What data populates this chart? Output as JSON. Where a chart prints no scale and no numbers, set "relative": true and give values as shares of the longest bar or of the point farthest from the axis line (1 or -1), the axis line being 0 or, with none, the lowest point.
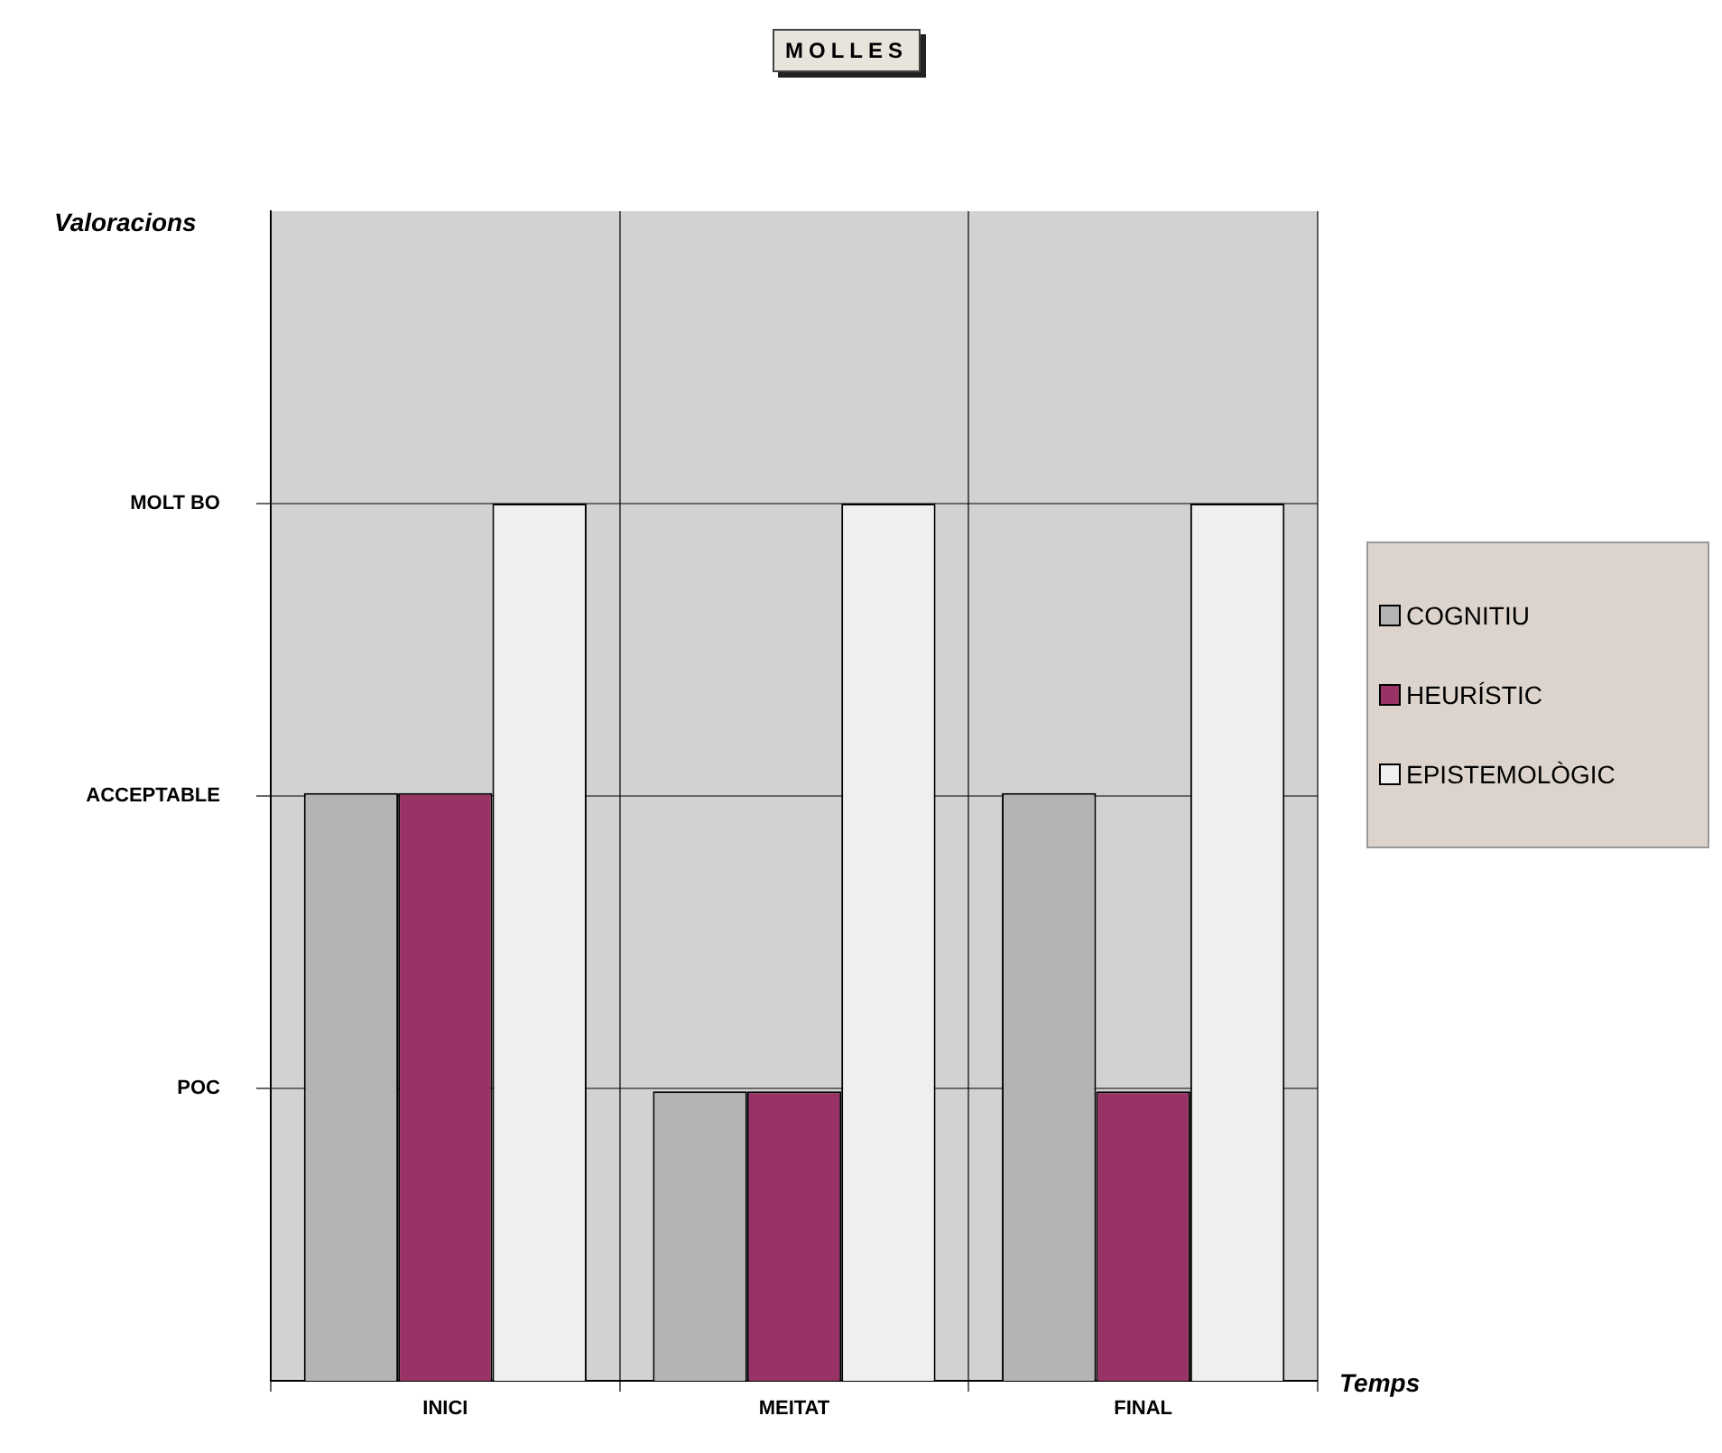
{
  "chart_data": {
    "type": "bar",
    "title": "MOLLES",
    "xlabel": "Temps",
    "categories": [
      "INICI",
      "MEITAT",
      "FINAL"
    ],
    "series": [
      {
        "name": "COGNITIU",
        "color": "#b4b4b4",
        "values": [
          0.67,
          0.33,
          0.67
        ]
      },
      {
        "name": "HEURÍSTIC",
        "color": "#993366",
        "values": [
          0.67,
          0.33,
          0.33
        ]
      },
      {
        "name": "EPISTEMOLÒGIC",
        "color": "#efefef",
        "values": [
          1,
          1,
          1
        ]
      }
    ],
    "relative": true,
    "annotations": [
      "POC",
      "ACCEPTABLE",
      "MOLT BO",
      "Valoracions"
    ],
    "grid": "x",
    "legend": "right"
  }
}
